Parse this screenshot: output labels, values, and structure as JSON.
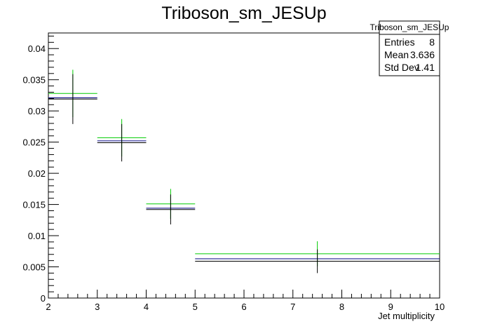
{
  "chart_data": {
    "type": "histogram",
    "title": "Triboson_sm_JESUp",
    "xlabel": "Jet multiplicity",
    "ylabel": "",
    "xlim": [
      2,
      10
    ],
    "ylim": [
      0,
      0.0425
    ],
    "x_ticks": [
      "2",
      "3",
      "4",
      "5",
      "6",
      "7",
      "8",
      "9",
      "10"
    ],
    "y_ticks": [
      "0",
      "0.005",
      "0.01",
      "0.015",
      "0.02",
      "0.025",
      "0.03",
      "0.035",
      "0.04"
    ],
    "bins": [
      {
        "low": 2,
        "high": 3,
        "center": 2.5
      },
      {
        "low": 3,
        "high": 4,
        "center": 3.5
      },
      {
        "low": 4,
        "high": 5,
        "center": 4.5
      },
      {
        "low": 5,
        "high": 10,
        "center": 7.5
      }
    ],
    "series": [
      {
        "color": "#00cc00",
        "values": [
          0.0328,
          0.0257,
          0.0151,
          0.0071
        ],
        "errors": [
          0.0038,
          0.003,
          0.0024,
          0.002
        ]
      },
      {
        "color": "#000080",
        "values": [
          0.0321,
          0.0252,
          0.0144,
          0.0063
        ],
        "errors": [
          0,
          0,
          0,
          0
        ]
      },
      {
        "color": "#000000",
        "values": [
          0.0319,
          0.0249,
          0.0142,
          0.0059
        ],
        "errors": [
          0.004,
          0.003,
          0.0024,
          0.0019
        ]
      }
    ],
    "grid": false
  },
  "stats_box": {
    "title": "Triboson_sm_JESUp",
    "rows": [
      {
        "label": "Entries",
        "value": "8"
      },
      {
        "label": "Mean",
        "value": "3.636"
      },
      {
        "label": "Std Dev",
        "value": "1.41"
      }
    ]
  }
}
